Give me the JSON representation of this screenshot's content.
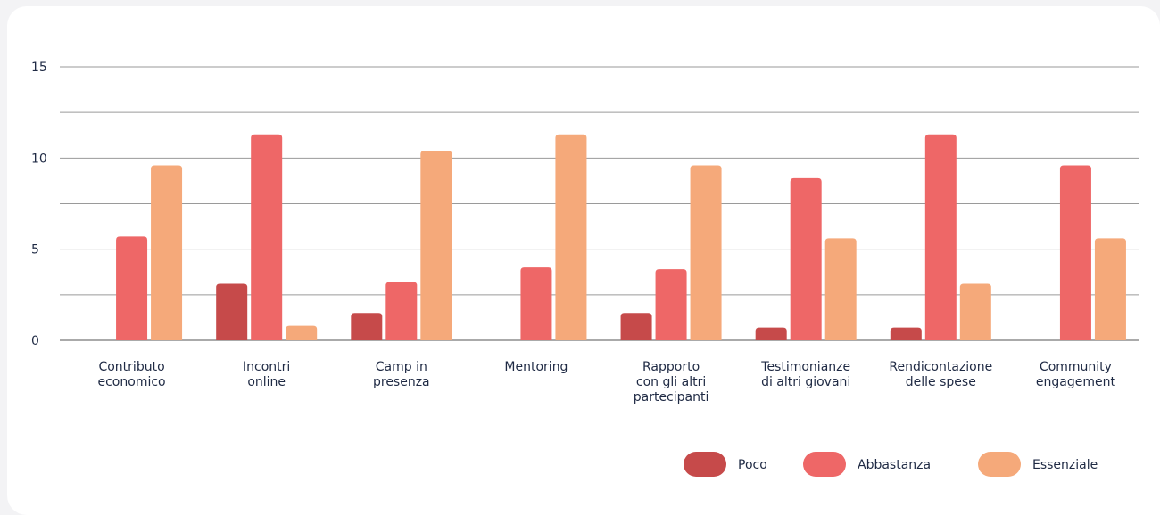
{
  "chart_data": {
    "type": "bar",
    "categories": [
      [
        "Contributo",
        "economico"
      ],
      [
        "Incontri",
        "online"
      ],
      [
        "Camp in",
        "presenza"
      ],
      [
        "Mentoring"
      ],
      [
        "Rapporto",
        "con gli altri",
        "partecipanti"
      ],
      [
        "Testimonianze",
        "di altri giovani"
      ],
      [
        "Rendicontazione",
        "delle spese"
      ],
      [
        "Community",
        "engagement"
      ]
    ],
    "series": [
      {
        "name": "Poco",
        "color": "#c64a4a",
        "values": [
          0,
          3.1,
          1.5,
          0,
          1.5,
          0.7,
          0.7,
          0
        ]
      },
      {
        "name": "Abbastanza",
        "color": "#ee6767",
        "values": [
          5.7,
          11.3,
          3.2,
          4.0,
          3.9,
          8.9,
          11.3,
          9.6
        ]
      },
      {
        "name": "Essenziale",
        "color": "#f5a97a",
        "values": [
          9.6,
          0.8,
          10.4,
          11.3,
          9.6,
          5.6,
          3.1,
          5.6
        ]
      }
    ],
    "yticks": [
      0,
      5,
      10,
      15
    ],
    "ylim": [
      0,
      15
    ],
    "grid": true,
    "legend_position": "bottom-right"
  }
}
